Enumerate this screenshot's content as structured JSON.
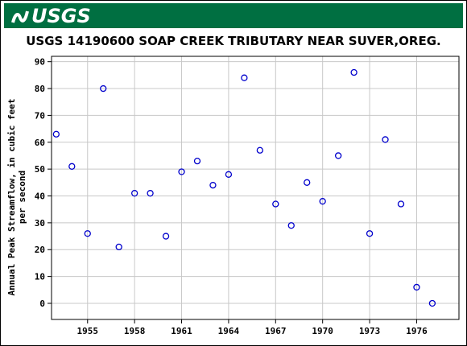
{
  "header": {
    "logo_text": "USGS",
    "logo_icon": "usgs-wave-icon",
    "banner_color": "#006f41"
  },
  "chart_data": {
    "type": "scatter",
    "title": "USGS 14190600 SOAP CREEK TRIBUTARY NEAR SUVER,OREG.",
    "ylabel_line1": "Annual Peak Streamflow, in cubic feet",
    "ylabel_line2": "per second",
    "xlabel": "",
    "xlim": [
      1952.7,
      1978.7
    ],
    "ylim": [
      -6,
      92
    ],
    "x_ticks": [
      1955,
      1958,
      1961,
      1964,
      1967,
      1970,
      1973,
      1976
    ],
    "y_ticks": [
      0,
      10,
      20,
      30,
      40,
      50,
      60,
      70,
      80,
      90
    ],
    "grid": true,
    "marker_color": "#0000cc",
    "points": [
      {
        "x": 1953,
        "y": 63
      },
      {
        "x": 1954,
        "y": 51
      },
      {
        "x": 1955,
        "y": 26
      },
      {
        "x": 1956,
        "y": 80
      },
      {
        "x": 1957,
        "y": 21
      },
      {
        "x": 1958,
        "y": 41
      },
      {
        "x": 1959,
        "y": 41
      },
      {
        "x": 1960,
        "y": 25
      },
      {
        "x": 1961,
        "y": 49
      },
      {
        "x": 1962,
        "y": 53
      },
      {
        "x": 1963,
        "y": 44
      },
      {
        "x": 1964,
        "y": 48
      },
      {
        "x": 1965,
        "y": 84
      },
      {
        "x": 1966,
        "y": 57
      },
      {
        "x": 1967,
        "y": 37
      },
      {
        "x": 1968,
        "y": 29
      },
      {
        "x": 1969,
        "y": 45
      },
      {
        "x": 1970,
        "y": 38
      },
      {
        "x": 1971,
        "y": 55
      },
      {
        "x": 1972,
        "y": 86
      },
      {
        "x": 1973,
        "y": 26
      },
      {
        "x": 1974,
        "y": 61
      },
      {
        "x": 1975,
        "y": 37
      },
      {
        "x": 1976,
        "y": 6
      },
      {
        "x": 1977,
        "y": 0
      }
    ]
  }
}
